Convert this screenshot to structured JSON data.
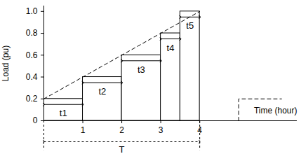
{
  "chart_data": {
    "type": "step",
    "xlabel": "Time (hour)",
    "ylabel": "Load (pu)",
    "xlim": [
      0,
      6.5
    ],
    "ylim": [
      0,
      1.05
    ],
    "xticks": [
      1,
      2,
      3,
      4
    ],
    "yticks": [
      0,
      0.2,
      0.4,
      0.6,
      0.8,
      {
        "value": 1,
        "label": "1.0"
      }
    ],
    "color": "#000000",
    "steps": [
      {
        "name": "t1",
        "start": 0,
        "end": 1,
        "value": 0.2
      },
      {
        "name": "t2",
        "start": 1,
        "end": 2,
        "value": 0.4
      },
      {
        "name": "t3",
        "start": 2,
        "end": 3,
        "value": 0.6
      },
      {
        "name": "t4",
        "start": 3,
        "end": 3.5,
        "value": 0.8
      },
      {
        "name": "t5",
        "start": 3.5,
        "end": 4,
        "value": 1
      }
    ],
    "trend": {
      "x": [
        0,
        4
      ],
      "values": [
        0.2,
        1
      ],
      "line_style": "dashed"
    },
    "next_period": {
      "x": [
        5,
        5,
        6.1
      ],
      "values": [
        0,
        0.2,
        0.2
      ],
      "line_style": "dashed"
    },
    "period": {
      "label": "T",
      "start": 0,
      "end": 4
    }
  }
}
